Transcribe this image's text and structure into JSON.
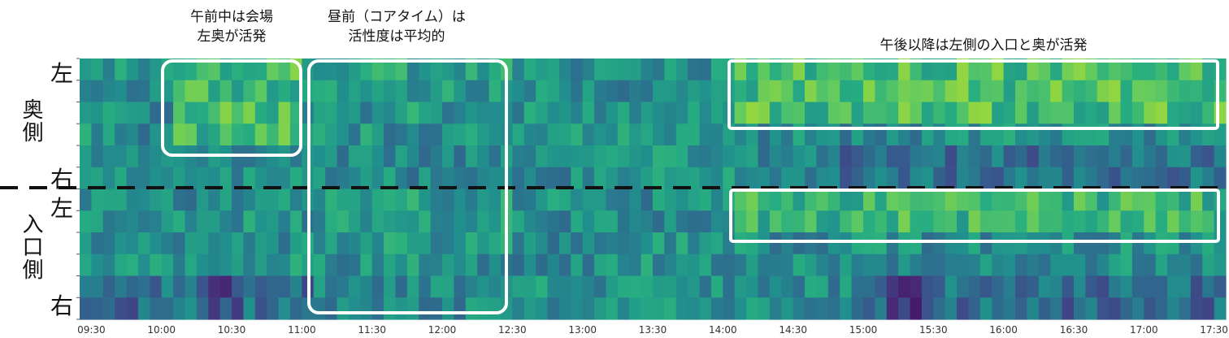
{
  "chart_data": {
    "type": "heatmap",
    "colormap": "viridis",
    "x_ticks": [
      "09:30",
      "10:00",
      "10:30",
      "11:00",
      "11:30",
      "12:00",
      "12:30",
      "13:00",
      "13:30",
      "14:00",
      "14:30",
      "15:00",
      "15:30",
      "16:00",
      "16:30",
      "17:00",
      "17:30"
    ],
    "x_range": [
      "09:25",
      "17:35"
    ],
    "groups": [
      {
        "label": "奥側",
        "top_label": "左",
        "bottom_label": "右",
        "rows": 6
      },
      {
        "label": "入口側",
        "top_label": "左",
        "bottom_label": "右",
        "rows": 6
      }
    ],
    "columns": 98,
    "divider": "dashed-black",
    "annotations": [
      {
        "text": "午前中は会場\n左奥が活発",
        "range": [
          "10:05",
          "11:00"
        ],
        "group": "奥側",
        "rows": "1-4"
      },
      {
        "text": "昼前（コアタイム）は\n活性度は平均的",
        "range": [
          "11:05",
          "12:30"
        ],
        "group": "all"
      },
      {
        "text": "午後以降は左側の入口と奥が活発",
        "range_top": [
          "14:05",
          "17:35"
        ],
        "group": "奥側",
        "rows": "1-3",
        "range_bottom": [
          "14:05",
          "17:35"
        ],
        "group_bottom": "入口側",
        "rows_bottom": "1-2"
      }
    ]
  },
  "labels": {
    "ann1_line1": "午前中は会場",
    "ann1_line2": "左奥が活発",
    "ann2_line1": "昼前（コアタイム）は",
    "ann2_line2": "活性度は平均的",
    "ann3": "午後以降は左側の入口と奥が活発",
    "back_group": "奥側",
    "entrance_group": "入口側",
    "left_back": "左",
    "right_back": "右",
    "left_entrance": "左",
    "right_entrance": "右"
  }
}
